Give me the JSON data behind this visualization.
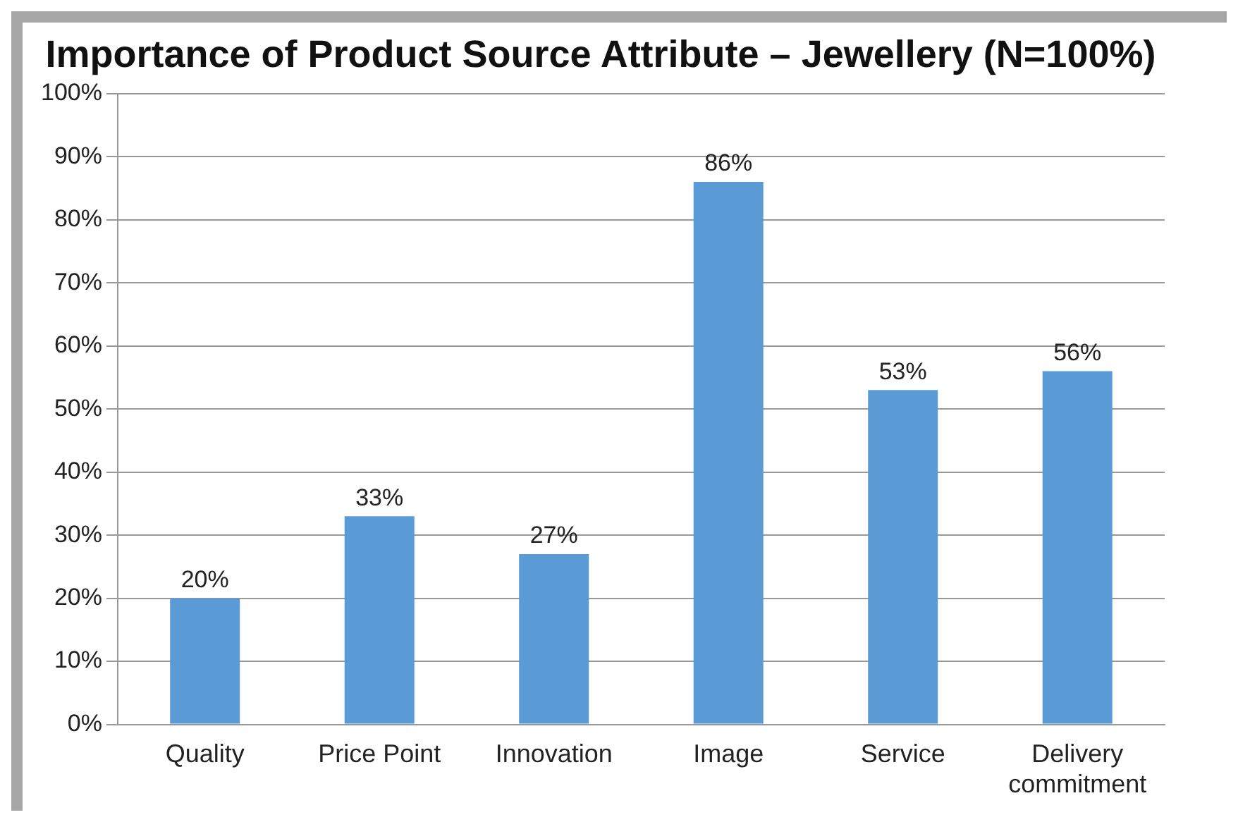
{
  "chart_data": {
    "type": "bar",
    "title": "Importance of Product Source Attribute – Jewellery (N=100%)",
    "categories": [
      "Quality",
      "Price Point",
      "Innovation",
      "Image",
      "Service",
      "Delivery commitment"
    ],
    "values": [
      20,
      33,
      27,
      86,
      53,
      56
    ],
    "value_labels": [
      "20%",
      "33%",
      "27%",
      "86%",
      "53%",
      "56%"
    ],
    "color": "#5b9bd5",
    "ylim": [
      0,
      100
    ],
    "yticks": [
      {
        "value": 0,
        "label": "0%"
      },
      {
        "value": 10,
        "label": "10%"
      },
      {
        "value": 20,
        "label": "20%"
      },
      {
        "value": 30,
        "label": "30%"
      },
      {
        "value": 40,
        "label": "40%"
      },
      {
        "value": 50,
        "label": "50%"
      },
      {
        "value": 60,
        "label": "60%"
      },
      {
        "value": 70,
        "label": "70%"
      },
      {
        "value": 80,
        "label": "80%"
      },
      {
        "value": 90,
        "label": "90%"
      },
      {
        "value": 100,
        "label": "100%"
      }
    ],
    "grid": "y"
  }
}
